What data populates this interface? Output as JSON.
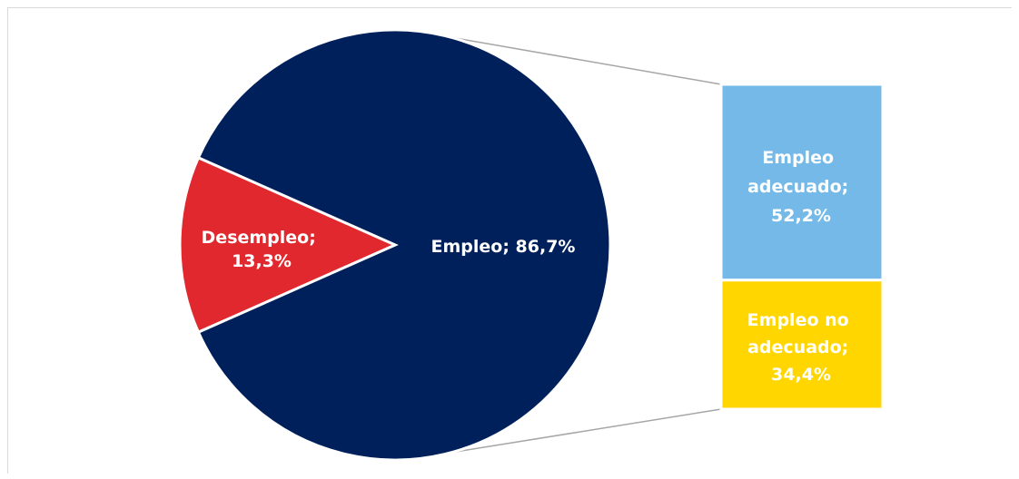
{
  "chart_data": {
    "type": "bar-of-pie",
    "pie": {
      "slices": [
        {
          "name": "Empleo",
          "value": 86.7,
          "label": "Empleo; 86,7%",
          "color": "#00205b"
        },
        {
          "name": "Desempleo",
          "value": 13.3,
          "label_lines": [
            "Desempleo;",
            "13,3%"
          ],
          "color": "#e0282e"
        }
      ]
    },
    "bar": {
      "segments": [
        {
          "name": "Empleo adecuado",
          "value": 52.2,
          "label_lines": [
            "Empleo",
            "adecuado;",
            "52,2%"
          ],
          "color": "#74b9e7"
        },
        {
          "name": "Empleo no adecuado",
          "value": 34.4,
          "label_lines": [
            "Empleo no",
            "adecuado;",
            "34,4%"
          ],
          "color": "#ffd600"
        }
      ]
    },
    "connector_color": "#a6a6a6",
    "legend": "none"
  }
}
